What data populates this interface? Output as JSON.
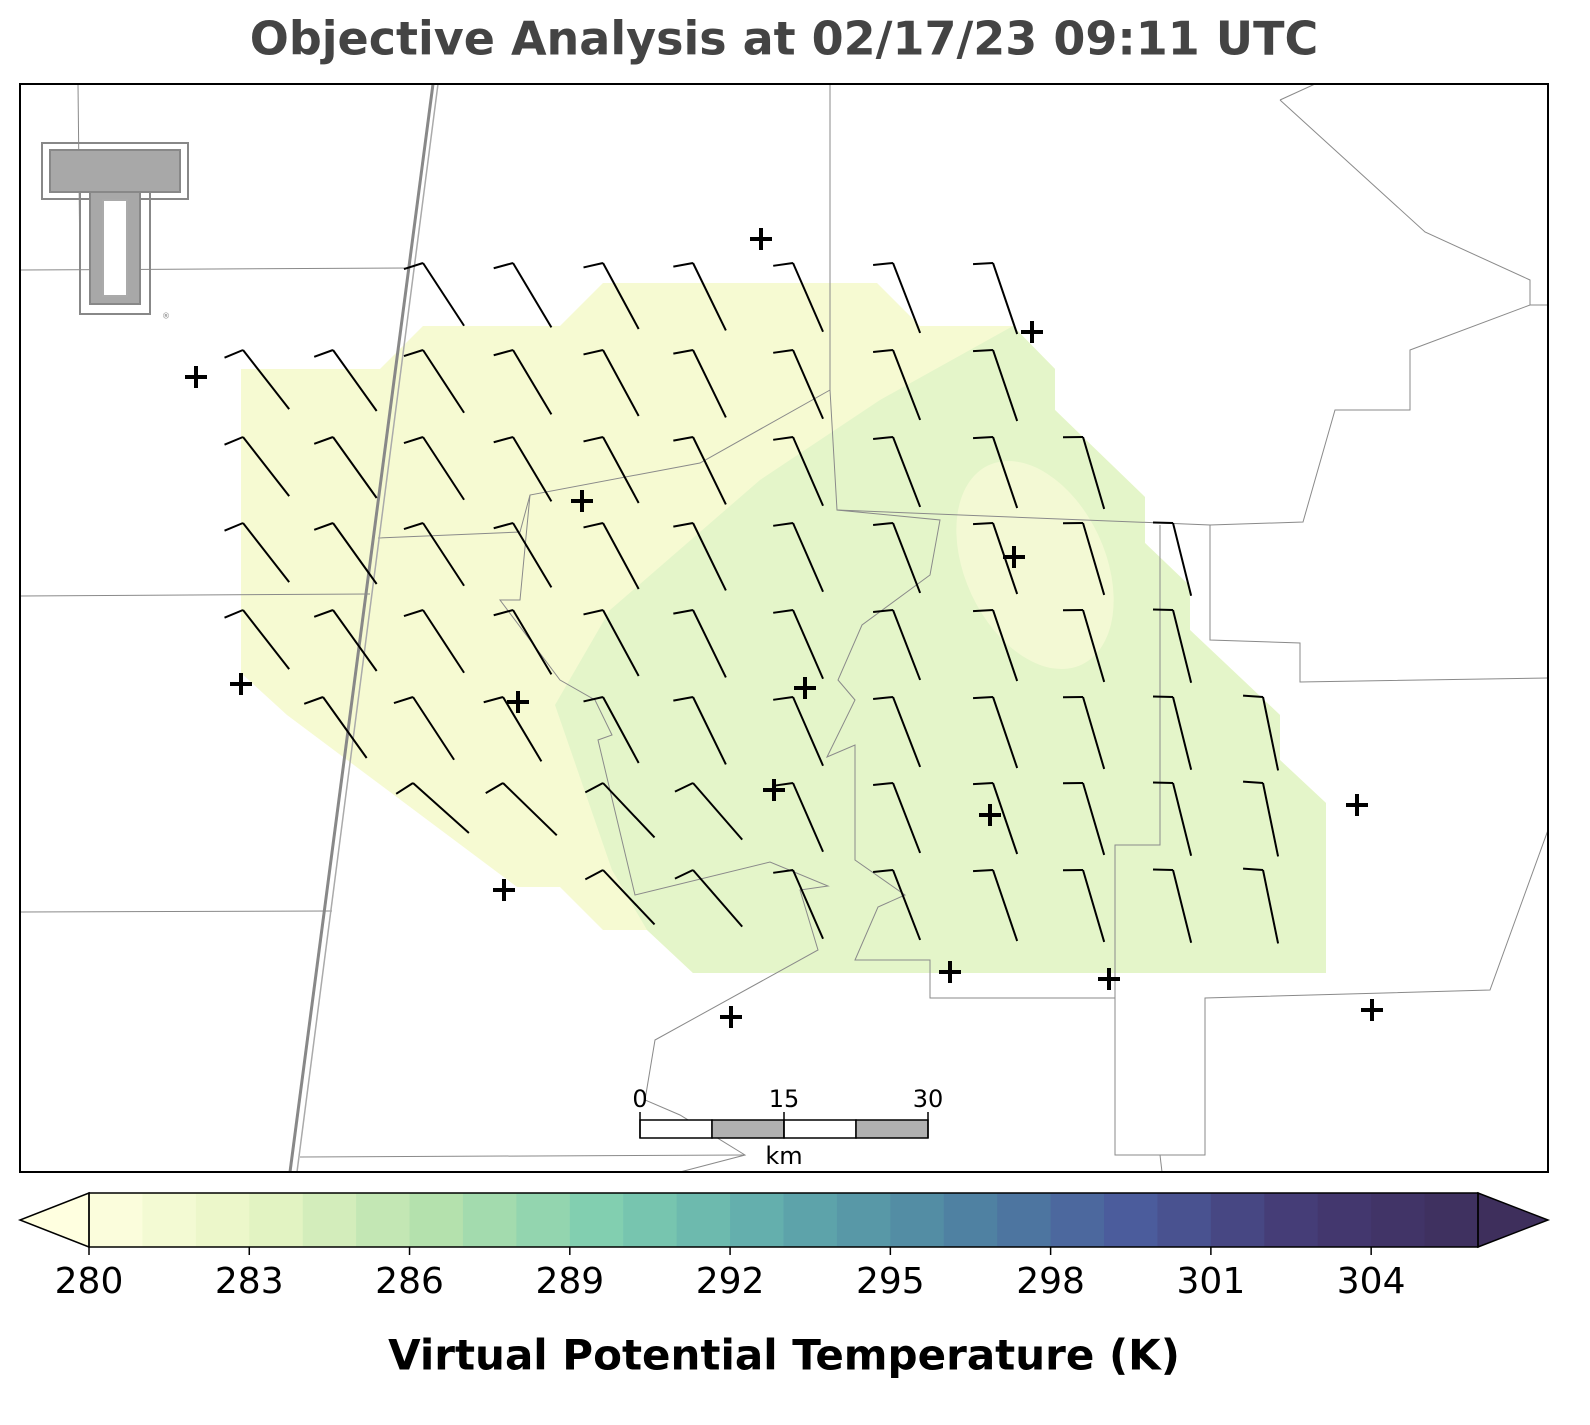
{
  "title": "Objective Analysis at 02/17/23 09:11 UTC",
  "colorbar": {
    "label": "Virtual Potential Temperature (K)",
    "range": [
      280,
      306
    ],
    "ticks": [
      280,
      283,
      286,
      289,
      292,
      295,
      298,
      301,
      304
    ],
    "colors": [
      "#ffffe0",
      "#e6f5c4",
      "#b4e1ad",
      "#7ecdb0",
      "#5fa9ac",
      "#4f84a2",
      "#4b5c9c",
      "#453a74",
      "#3e2f5c"
    ]
  },
  "scale_bar": {
    "ticks": [
      0,
      15,
      30
    ],
    "unit": "km"
  }
}
